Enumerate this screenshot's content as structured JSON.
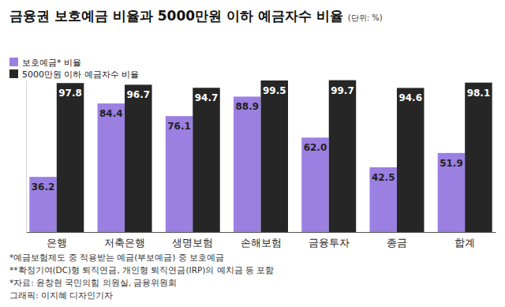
{
  "chart_data": {
    "type": "bar",
    "title": "금융권 보호예금 비율과 5000만원 이하 예금자수 비율",
    "subtitle": "(단위: %)",
    "categories": [
      "은행",
      "저축은행",
      "생명보험",
      "손해보험",
      "금융투자",
      "종금",
      "합계"
    ],
    "series": [
      {
        "name": "보호예금* 비율",
        "color": "#9b80e2",
        "values": [
          36.2,
          84.4,
          76.1,
          88.9,
          62.0,
          42.5,
          51.9
        ],
        "value_labels": [
          "36.2",
          "84.4",
          "76.1",
          "88.9",
          "62.0",
          "42.5",
          "51.9"
        ]
      },
      {
        "name": "5000만원 이하 예금자수 비율",
        "color": "#262626",
        "values": [
          97.8,
          96.7,
          94.7,
          99.5,
          99.7,
          94.6,
          98.1
        ],
        "value_labels": [
          "97.8",
          "96.7",
          "94.7",
          "99.5",
          "99.7",
          "94.6",
          "98.1"
        ]
      }
    ],
    "ylim": [
      0,
      100
    ],
    "yticks": [],
    "tick_labels": "x",
    "data_labels": true,
    "legend": "top-left",
    "grid": false,
    "annotations": [
      "*예금보험제도 중 적용받는 예금(부보예금) 중 보호예금",
      "**확정기여(DC)형 퇴직연금, 개인형 퇴직연금(IRP)의 예치금 등 포함",
      "*자료: 윤창현 국민의힘 의원실, 금융위원회",
      "그래픽: 이지혜 디자인기자"
    ]
  }
}
